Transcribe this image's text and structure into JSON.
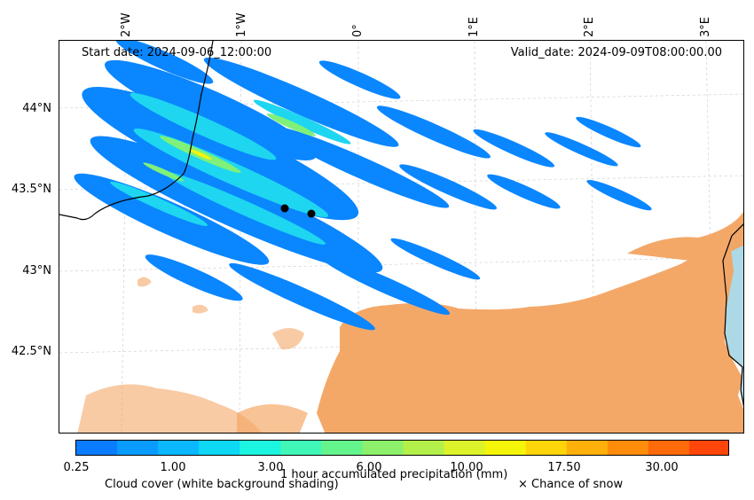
{
  "header": {
    "start_date": "Start date: 2024-09-06_12:00:00",
    "valid_date": "Valid_date: 2024-09-09T08:00:00.00"
  },
  "axes": {
    "lon_labels": [
      "2°W",
      "1°W",
      "0°",
      "1°E",
      "2°E",
      "3°E"
    ],
    "lat_labels": [
      "44°N",
      "43.5°N",
      "43°N",
      "42.5°N"
    ]
  },
  "colorbar": {
    "tick_labels": [
      "0.25",
      "1.00",
      "3.00",
      "6.00",
      "10.00",
      "17.50",
      "30.00"
    ],
    "colors": [
      "#0a7cff",
      "#0a9bff",
      "#0ab8ff",
      "#0fd8f5",
      "#1cf5e0",
      "#40f7b8",
      "#64f48c",
      "#8cf06a",
      "#b4f04a",
      "#dcf22a",
      "#f5f50a",
      "#ffd50a",
      "#ffb00a",
      "#ff8c0a",
      "#ff6a0a",
      "#ff460a"
    ],
    "label": "1 hour accumulated precipitation (mm)"
  },
  "legend": {
    "cloud_cover": "Cloud cover (white background shading)",
    "snow": "× Chance of snow"
  },
  "colors": {
    "cloud": "#f4a460",
    "sea": "#add8e6",
    "precip_light": "#0a86ff",
    "precip_mid": "#1ed6f0",
    "precip_high": "#7ff07a"
  }
}
